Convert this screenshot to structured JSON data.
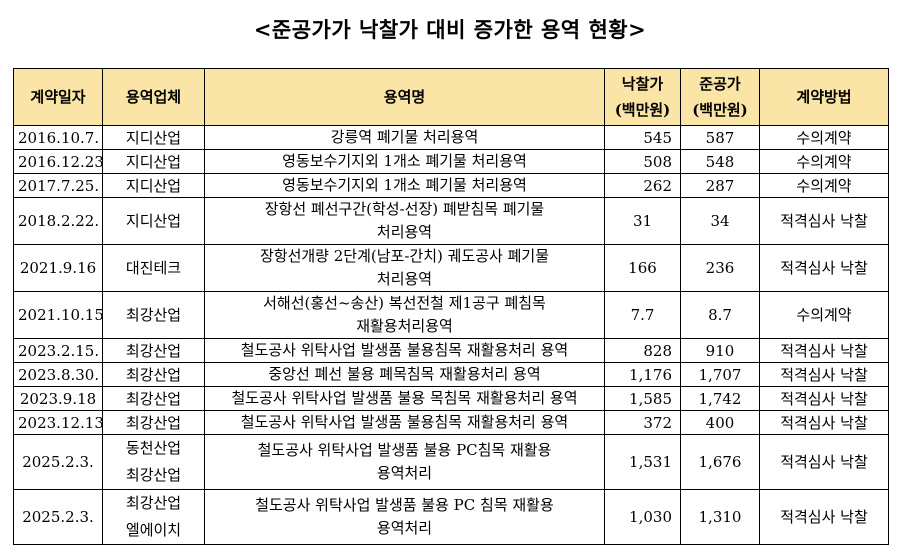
{
  "title": "<준공가가 낙찰가 대비 증가한 용역 현황>",
  "headers": {
    "date": "계약일자",
    "company": "용역업체",
    "service": "용역명",
    "bid": [
      "낙찰가",
      "(백만원)"
    ],
    "final": [
      "준공가",
      "(백만원)"
    ],
    "method": "계약방법"
  },
  "rows": [
    {
      "date": "2016.10.7.",
      "company": [
        "지디산업"
      ],
      "service": [
        "강릉역 폐기물 처리용역"
      ],
      "bid": "545",
      "final": "587",
      "method": "수의계약"
    },
    {
      "date": "2016.12.23.",
      "company": [
        "지디산업"
      ],
      "service": [
        "영동보수기지외 1개소 폐기물 처리용역"
      ],
      "bid": "508",
      "final": "548",
      "method": "수의계약"
    },
    {
      "date": "2017.7.25.",
      "company": [
        "지디산업"
      ],
      "service": [
        "영동보수기지외 1개소 폐기물 처리용역"
      ],
      "bid": "262",
      "final": "287",
      "method": "수의계약"
    },
    {
      "date": "2018.2.22.",
      "company": [
        "지디산업"
      ],
      "service": [
        "장항선 폐선구간(학성-선장) 폐받침목 폐기물",
        "처리용역"
      ],
      "bid": "31",
      "final": "34",
      "method": "적격심사 낙찰"
    },
    {
      "date": "2021.9.16",
      "company": [
        "대진테크"
      ],
      "service": [
        "장항선개량 2단계(남포-간치) 궤도공사 폐기물",
        "처리용역"
      ],
      "bid": "166",
      "final": "236",
      "method": "적격심사 낙찰"
    },
    {
      "date": "2021.10.15.",
      "company": [
        "최강산업"
      ],
      "service": [
        "서해선(홍선~송산) 복선전철 제1공구 폐침목",
        "재활용처리용역"
      ],
      "bid": "7.7",
      "final": "8.7",
      "method": "수의계약"
    },
    {
      "date": "2023.2.15.",
      "company": [
        "최강산업"
      ],
      "service": [
        "철도공사 위탁사업 발생품 불용침목 재활용처리 용역"
      ],
      "bid": "828",
      "final": "910",
      "method": "적격심사 낙찰"
    },
    {
      "date": "2023.8.30.",
      "company": [
        "최강산업"
      ],
      "service": [
        "중앙선 폐선 불용 폐목침목 재활용처리 용역"
      ],
      "bid": "1,176",
      "final": "1,707",
      "method": "적격심사 낙찰"
    },
    {
      "date": "2023.9.18",
      "company": [
        "최강산업"
      ],
      "service": [
        "철도공사 위탁사업 발생품 불용 목침목 재활용처리 용역"
      ],
      "bid": "1,585",
      "final": "1,742",
      "method": "적격심사 낙찰"
    },
    {
      "date": "2023.12.13.",
      "company": [
        "최강산업"
      ],
      "service": [
        "철도공사 위탁사업 발생품 불용침목 재활용처리 용역"
      ],
      "bid": "372",
      "final": "400",
      "method": "적격심사 낙찰"
    },
    {
      "date": "2025.2.3.",
      "company": [
        "동천산업",
        "최강산업"
      ],
      "service": [
        "철도공사 위탁사업 발생품 불용 PC침목 재활용",
        "용역처리"
      ],
      "bid": "1,531",
      "final": "1,676",
      "method": "적격심사 낙찰"
    },
    {
      "date": "2025.2.3.",
      "company": [
        "최강산업",
        "엘에이치"
      ],
      "service": [
        "철도공사 위탁사업 발생품 불용 PC 침목 재활용",
        "용역처리"
      ],
      "bid": "1,030",
      "final": "1,310",
      "method": "적격심사 낙찰"
    }
  ]
}
